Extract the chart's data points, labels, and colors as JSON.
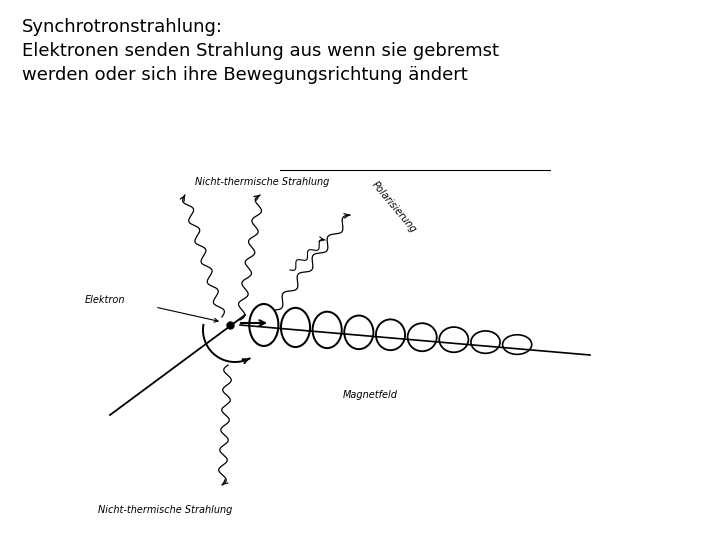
{
  "title_line1": "Synchrotronstrahlung:",
  "title_line2": "Elektronen senden Strahlung aus wenn sie gebremst",
  "title_line3": "werden oder sich ihre Bewegungsrichtung ändert",
  "bg_color": "#ffffff",
  "text_color": "#000000",
  "label_elektron": "Elektron",
  "label_magnetfeld": "Magnetfeld",
  "label_nicht_thermisch_top": "Nicht-thermische Strahlung",
  "label_nicht_thermisch_bottom": "Nicht-thermische Strahlung",
  "label_polarisierung": "Polarisierung",
  "title_fontsize": 13,
  "label_fontsize": 7
}
